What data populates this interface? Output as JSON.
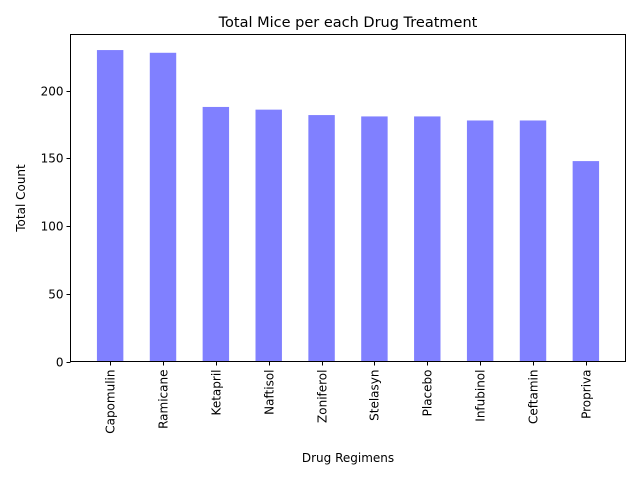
{
  "chart_data": {
    "type": "bar",
    "title": "Total Mice per each Drug Treatment",
    "xlabel": "Drug Regimens",
    "ylabel": "Total Count",
    "categories": [
      "Capomulin",
      "Ramicane",
      "Ketapril",
      "Naftisol",
      "Zoniferol",
      "Stelasyn",
      "Placebo",
      "Infubinol",
      "Ceftamin",
      "Propriva"
    ],
    "values": [
      230,
      228,
      188,
      186,
      182,
      181,
      181,
      178,
      178,
      148
    ],
    "ylim": [
      0,
      241.5
    ],
    "yticks": [
      0,
      50,
      100,
      150,
      200
    ],
    "bar_color": "#8080ff",
    "grid": false,
    "legend": "none"
  }
}
